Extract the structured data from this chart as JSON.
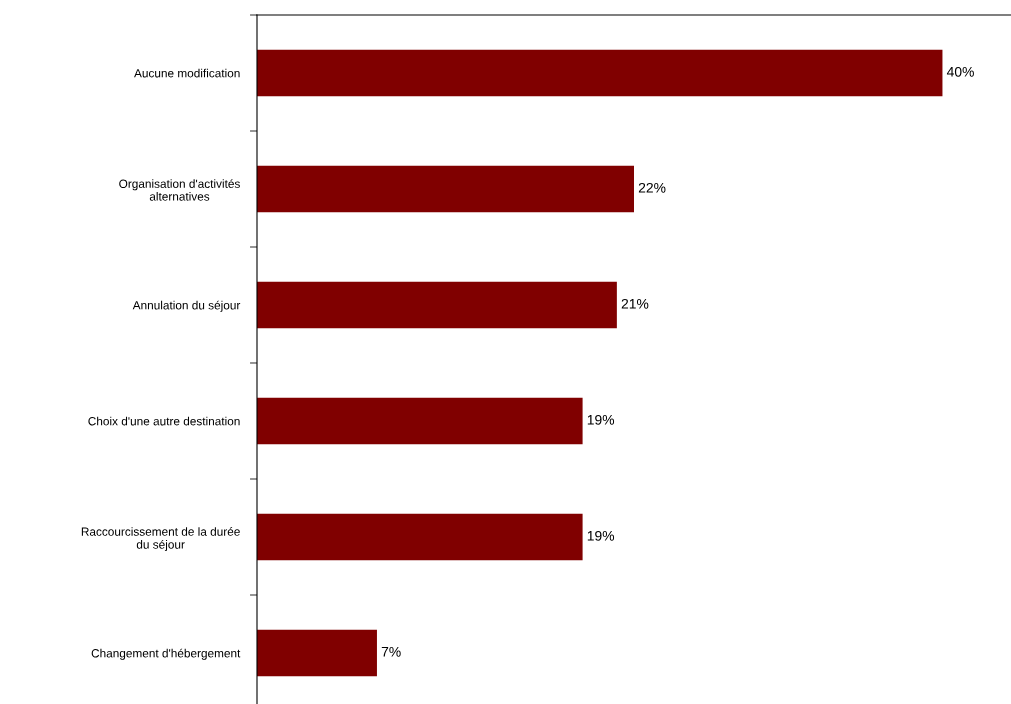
{
  "chart_data": {
    "type": "bar",
    "orientation": "horizontal",
    "categories": [
      "Aucune modification",
      "Organisation d'activités\nalternatives",
      "Annulation du séjour",
      "Choix d'une autre destination",
      "Raccourcissement de la durée\ndu séjour",
      "Changement d'hébergement"
    ],
    "values": [
      40,
      22,
      21,
      19,
      19,
      7
    ],
    "value_labels": [
      "40%",
      "22%",
      "21%",
      "19%",
      "19%",
      "7%"
    ],
    "color": "#800000",
    "tick_labels": "y",
    "grid": false,
    "legend": false
  }
}
